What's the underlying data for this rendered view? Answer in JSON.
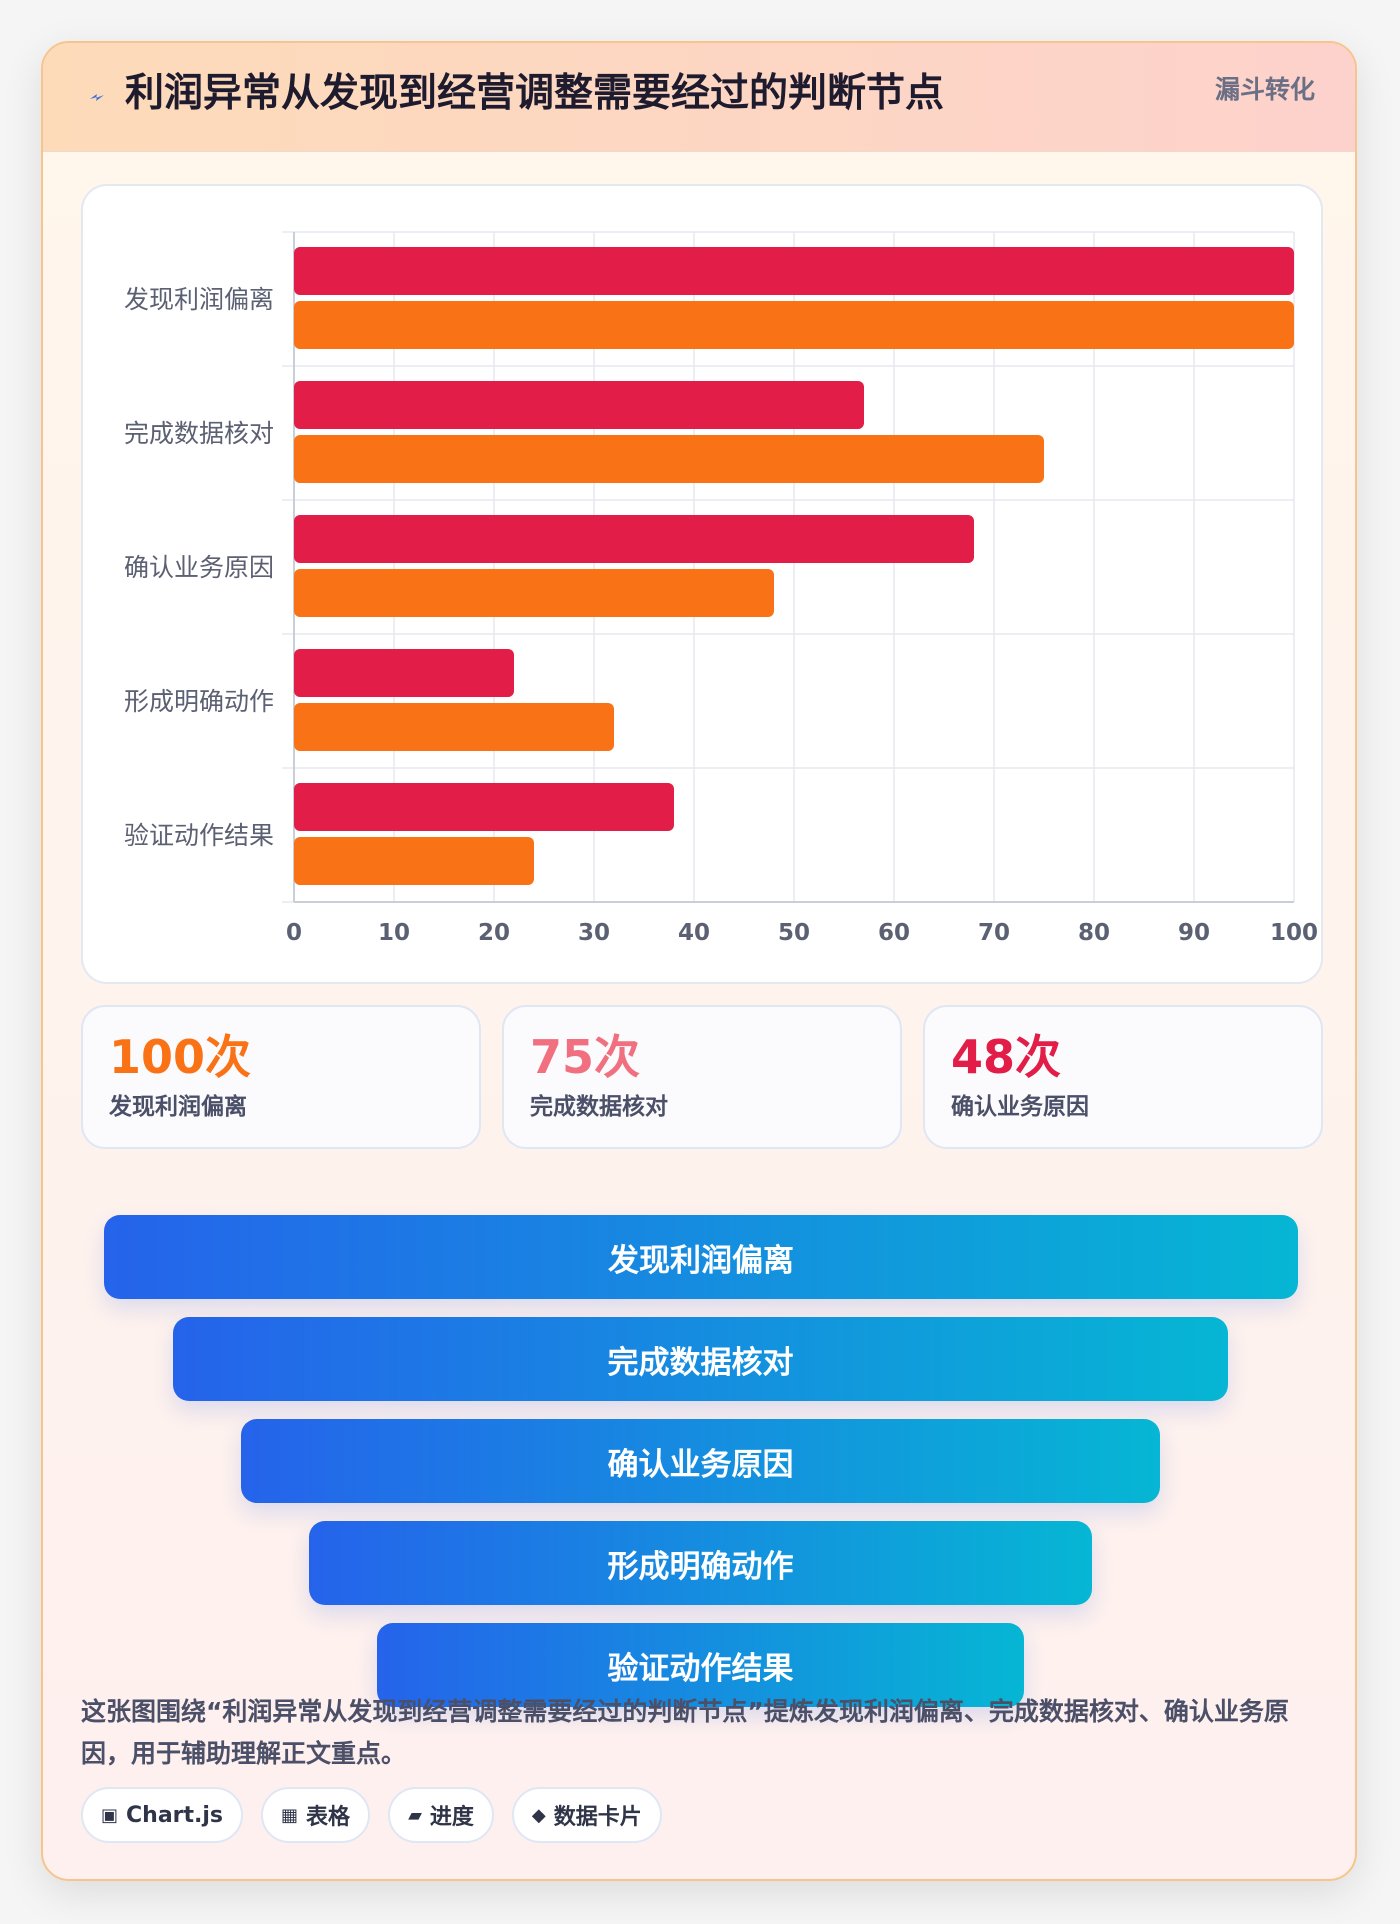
{
  "header": {
    "title": "利润异常从发现到经营调整需要经过的判断节点",
    "tag": "漏斗转化",
    "icon": "lightning-icon"
  },
  "colors": {
    "series_a": "#e11d48",
    "series_b": "#f97316",
    "stat_1": "#f97316",
    "stat_2": "#f07080",
    "stat_3": "#e11d48"
  },
  "chart_data": {
    "type": "bar",
    "orientation": "horizontal",
    "categories": [
      "发现利润偏离",
      "完成数据核对",
      "确认业务原因",
      "形成明确动作",
      "验证动作结果"
    ],
    "series": [
      {
        "values": [
          100,
          57,
          68,
          22,
          38
        ]
      },
      {
        "values": [
          100,
          75,
          48,
          32,
          24
        ]
      }
    ],
    "xlim": [
      0,
      100
    ],
    "xticks": [
      0,
      10,
      20,
      30,
      40,
      50,
      60,
      70,
      80,
      90,
      100
    ],
    "grid": true,
    "legend": "none"
  },
  "stats": [
    {
      "value": "100次",
      "label": "发现利润偏离"
    },
    {
      "value": "75次",
      "label": "完成数据核对"
    },
    {
      "value": "48次",
      "label": "确认业务原因"
    }
  ],
  "funnel": [
    "发现利润偏离",
    "完成数据核对",
    "确认业务原因",
    "形成明确动作",
    "验证动作结果"
  ],
  "description": "这张图围绕“利润异常从发现到经营调整需要经过的判断节点”提炼发现利润偏离、完成数据核对、确认业务原因，用于辅助理解正文重点。",
  "chips": [
    {
      "icon": "▣",
      "icon_name": "chart-icon",
      "label": "Chart.js"
    },
    {
      "icon": "▦",
      "icon_name": "table-icon",
      "label": "表格"
    },
    {
      "icon": "▰",
      "icon_name": "progress-icon",
      "label": "进度"
    },
    {
      "icon": "◆",
      "icon_name": "data-card-icon",
      "label": "数据卡片"
    }
  ]
}
